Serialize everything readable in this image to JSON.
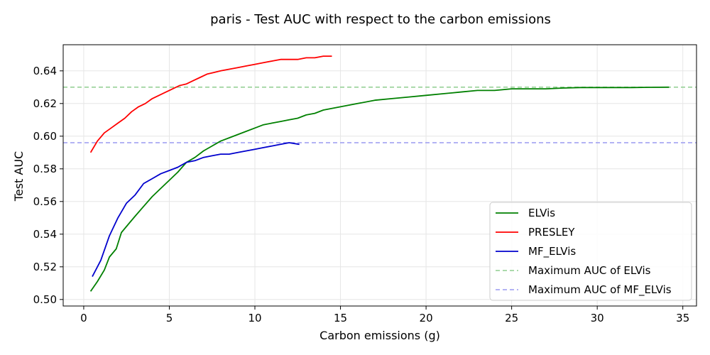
{
  "chart_data": {
    "type": "line",
    "title": "paris - Test AUC with respect to the carbon emissions",
    "xlabel": "Carbon emissions (g)",
    "ylabel": "Test AUC",
    "xlim": [
      -1.2,
      35.8
    ],
    "ylim": [
      0.496,
      0.656
    ],
    "xticks": [
      0,
      5,
      10,
      15,
      20,
      25,
      30,
      35
    ],
    "yticks": [
      0.5,
      0.52,
      0.54,
      0.56,
      0.58,
      0.6,
      0.62,
      0.64
    ],
    "ytick_labels": [
      "0.50",
      "0.52",
      "0.54",
      "0.56",
      "0.58",
      "0.60",
      "0.62",
      "0.64"
    ],
    "grid": true,
    "legend_position": "bottom-right",
    "series": [
      {
        "name": "ELVis",
        "color": "#008000",
        "style": "solid",
        "x": [
          0.4,
          0.8,
          1.2,
          1.5,
          1.9,
          2.2,
          2.6,
          3.0,
          3.5,
          4.0,
          4.5,
          5.0,
          5.5,
          6.0,
          6.5,
          7.0,
          7.5,
          8.0,
          8.5,
          9.0,
          9.5,
          10.0,
          10.5,
          11.0,
          11.5,
          12.0,
          12.5,
          13.0,
          13.5,
          14.0,
          15.0,
          16.0,
          17.0,
          18.0,
          19.0,
          20.0,
          21.0,
          22.0,
          23.0,
          24.0,
          25.0,
          26.0,
          27.0,
          28.0,
          29.0,
          30.0,
          31.0,
          32.0,
          33.0,
          34.2
        ],
        "values": [
          0.505,
          0.511,
          0.518,
          0.526,
          0.531,
          0.541,
          0.546,
          0.551,
          0.557,
          0.563,
          0.568,
          0.573,
          0.578,
          0.584,
          0.587,
          0.591,
          0.594,
          0.597,
          0.599,
          0.601,
          0.603,
          0.605,
          0.607,
          0.608,
          0.609,
          0.61,
          0.611,
          0.613,
          0.614,
          0.616,
          0.618,
          0.62,
          0.622,
          0.623,
          0.624,
          0.625,
          0.626,
          0.627,
          0.628,
          0.628,
          0.629,
          0.629,
          0.629,
          0.6295,
          0.6298,
          0.6298,
          0.6298,
          0.6298,
          0.6299,
          0.63
        ]
      },
      {
        "name": "PRESLEY",
        "color": "#ff0000",
        "style": "solid",
        "x": [
          0.4,
          0.8,
          1.2,
          1.6,
          2.0,
          2.4,
          2.8,
          3.2,
          3.6,
          4.0,
          4.4,
          4.8,
          5.2,
          5.6,
          6.0,
          6.4,
          6.8,
          7.2,
          7.6,
          8.0,
          8.5,
          9.0,
          9.5,
          10.0,
          10.5,
          11.0,
          11.5,
          12.0,
          12.5,
          13.0,
          13.5,
          14.0,
          14.5
        ],
        "values": [
          0.59,
          0.597,
          0.602,
          0.605,
          0.608,
          0.611,
          0.615,
          0.618,
          0.62,
          0.623,
          0.625,
          0.627,
          0.629,
          0.631,
          0.632,
          0.634,
          0.636,
          0.638,
          0.639,
          0.64,
          0.641,
          0.642,
          0.643,
          0.644,
          0.645,
          0.646,
          0.647,
          0.647,
          0.647,
          0.648,
          0.648,
          0.649,
          0.649
        ]
      },
      {
        "name": "MF_ELVis",
        "color": "#0000cd",
        "style": "solid",
        "x": [
          0.5,
          1.0,
          1.5,
          2.0,
          2.5,
          3.0,
          3.5,
          4.0,
          4.5,
          5.0,
          5.5,
          6.0,
          6.5,
          7.0,
          7.5,
          8.0,
          8.5,
          9.0,
          9.5,
          10.0,
          10.5,
          11.0,
          11.5,
          12.0,
          12.6
        ],
        "values": [
          0.514,
          0.524,
          0.539,
          0.55,
          0.559,
          0.564,
          0.571,
          0.574,
          0.577,
          0.579,
          0.581,
          0.584,
          0.585,
          0.587,
          0.588,
          0.589,
          0.589,
          0.59,
          0.591,
          0.592,
          0.593,
          0.594,
          0.595,
          0.596,
          0.595
        ]
      }
    ],
    "reference_lines": [
      {
        "name": "Maximum AUC of ELVis",
        "color": "#8fce8f",
        "style": "dashed",
        "y": 0.63
      },
      {
        "name": "Maximum AUC of MF_ELVis",
        "color": "#9a9af0",
        "style": "dashed",
        "y": 0.596
      }
    ]
  }
}
